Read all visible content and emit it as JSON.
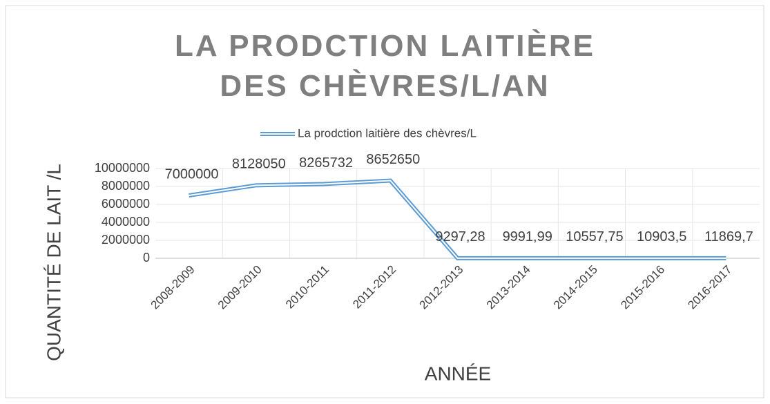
{
  "chart_data": {
    "type": "line",
    "title": "LA PRODCTION LAITIÈRE DES CHÈVRES/L/AN",
    "x_label": "ANNÉE",
    "y_label": "QUANTITÉ DE LAIT /L",
    "categories": [
      "2008-2009",
      "2009-2010",
      "2010-2011",
      "2011-2012",
      "2012-2013",
      "2013-2014",
      "2014-2015",
      "2015-2016",
      "2016-2017"
    ],
    "series": [
      {
        "name": "La prodction laitière des chèvres/L",
        "color": "#5b9bd5",
        "values": [
          7000000,
          8128050,
          8265732,
          8652650,
          9297.28,
          9991.99,
          10557.75,
          10903.5,
          11869.7
        ],
        "value_labels": [
          "7000000",
          "8128050",
          "8265732",
          "8652650",
          "9297,28",
          "9991,99",
          "10557,75",
          "10903,5",
          "11869,7"
        ]
      }
    ],
    "ylim": [
      0,
      10000000
    ],
    "yticks": [
      0,
      2000000,
      4000000,
      6000000,
      8000000,
      10000000
    ],
    "grid": true,
    "legend": "top"
  }
}
